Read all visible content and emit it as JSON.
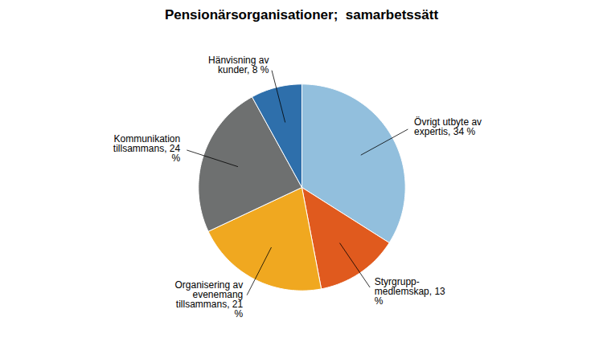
{
  "chart_data": {
    "type": "pie",
    "title": "Pensionärsorganisationer;  samarbetssätt",
    "categories": [
      "Övrigt utbyte av\nexpertis, 34 %",
      "Styrgrupp-\nmedlemskap, 13\n%",
      "Organisering av\nevenemang\ntillsammans, 21\n%",
      "Kommunikation\ntillsammans, 24\n%",
      "Hänvisning av\nkunder, 8 %"
    ],
    "values": [
      34,
      13,
      21,
      24,
      8
    ],
    "colors": [
      "#92BFDD",
      "#E05A1E",
      "#F0A820",
      "#6E7070",
      "#2E6FAB"
    ]
  }
}
